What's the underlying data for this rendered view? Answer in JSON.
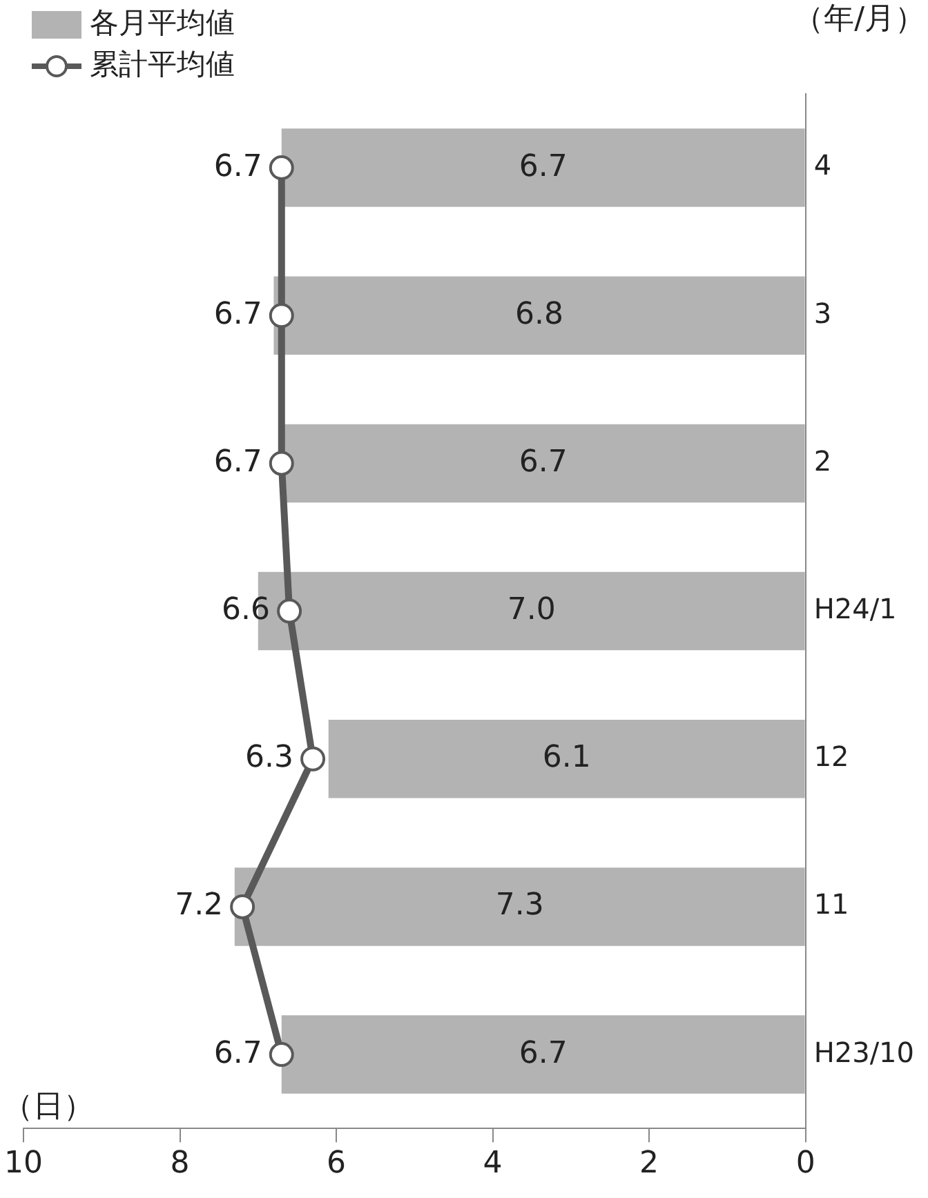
{
  "chart_data": {
    "type": "bar",
    "orientation": "horizontal",
    "xlabel": "（日）",
    "ylabel": "（年/月）",
    "categories": [
      "4",
      "3",
      "2",
      "H24/1",
      "12",
      "11",
      "H23/10"
    ],
    "series": [
      {
        "name": "各月平均値",
        "color": "#b3b3b3",
        "values": [
          6.7,
          6.8,
          6.7,
          7.0,
          6.1,
          7.3,
          6.7
        ],
        "value_labels": [
          "6.7",
          "6.8",
          "6.7",
          "7.0",
          "6.1",
          "7.3",
          "6.7"
        ]
      },
      {
        "name": "累計平均値",
        "type": "line",
        "color": "#595959",
        "values": [
          6.7,
          6.7,
          6.7,
          6.6,
          6.3,
          7.2,
          6.7
        ],
        "value_labels": [
          "6.7",
          "6.7",
          "6.7",
          "6.6",
          "6.3",
          "7.2",
          "6.7"
        ]
      }
    ],
    "xlim": [
      10,
      0
    ],
    "xticks": [
      10,
      8,
      6,
      4,
      2,
      0
    ],
    "legend": "top left",
    "marker": "circle"
  }
}
